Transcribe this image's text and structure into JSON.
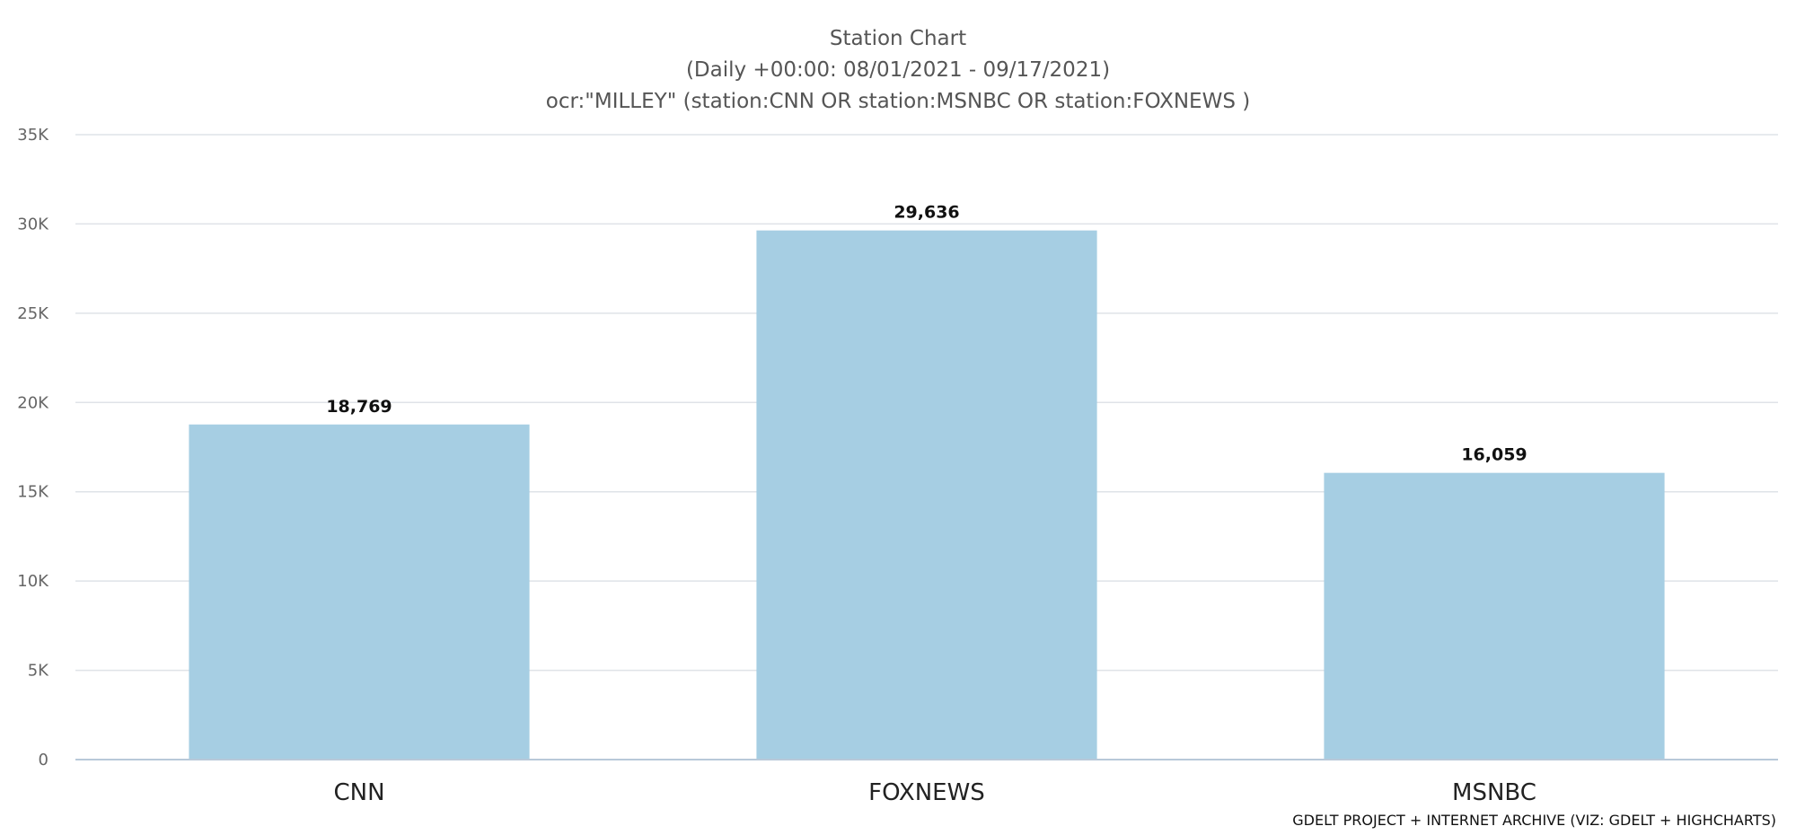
{
  "chart_data": {
    "type": "bar",
    "title": "Station Chart",
    "subtitle": [
      "(Daily +00:00: 08/01/2021 - 09/17/2021)",
      "ocr:\"MILLEY\" (station:CNN OR station:MSNBC OR station:FOXNEWS )"
    ],
    "categories": [
      "CNN",
      "FOXNEWS",
      "MSNBC"
    ],
    "values": [
      18769,
      29636,
      16059
    ],
    "value_labels": [
      "18,769",
      "29,636",
      "16,059"
    ],
    "ylim": [
      0,
      35000
    ],
    "yticks": [
      0,
      5000,
      10000,
      15000,
      20000,
      25000,
      30000,
      35000
    ],
    "ytick_labels": [
      "0",
      "5K",
      "10K",
      "15K",
      "20K",
      "25K",
      "30K",
      "35K"
    ],
    "xlabel": "",
    "ylabel": "",
    "grid": true,
    "legend": "none",
    "bar_color": "#a6cee3",
    "credits": "GDELT PROJECT + INTERNET ARCHIVE (VIZ: GDELT + HIGHCHARTS)"
  }
}
